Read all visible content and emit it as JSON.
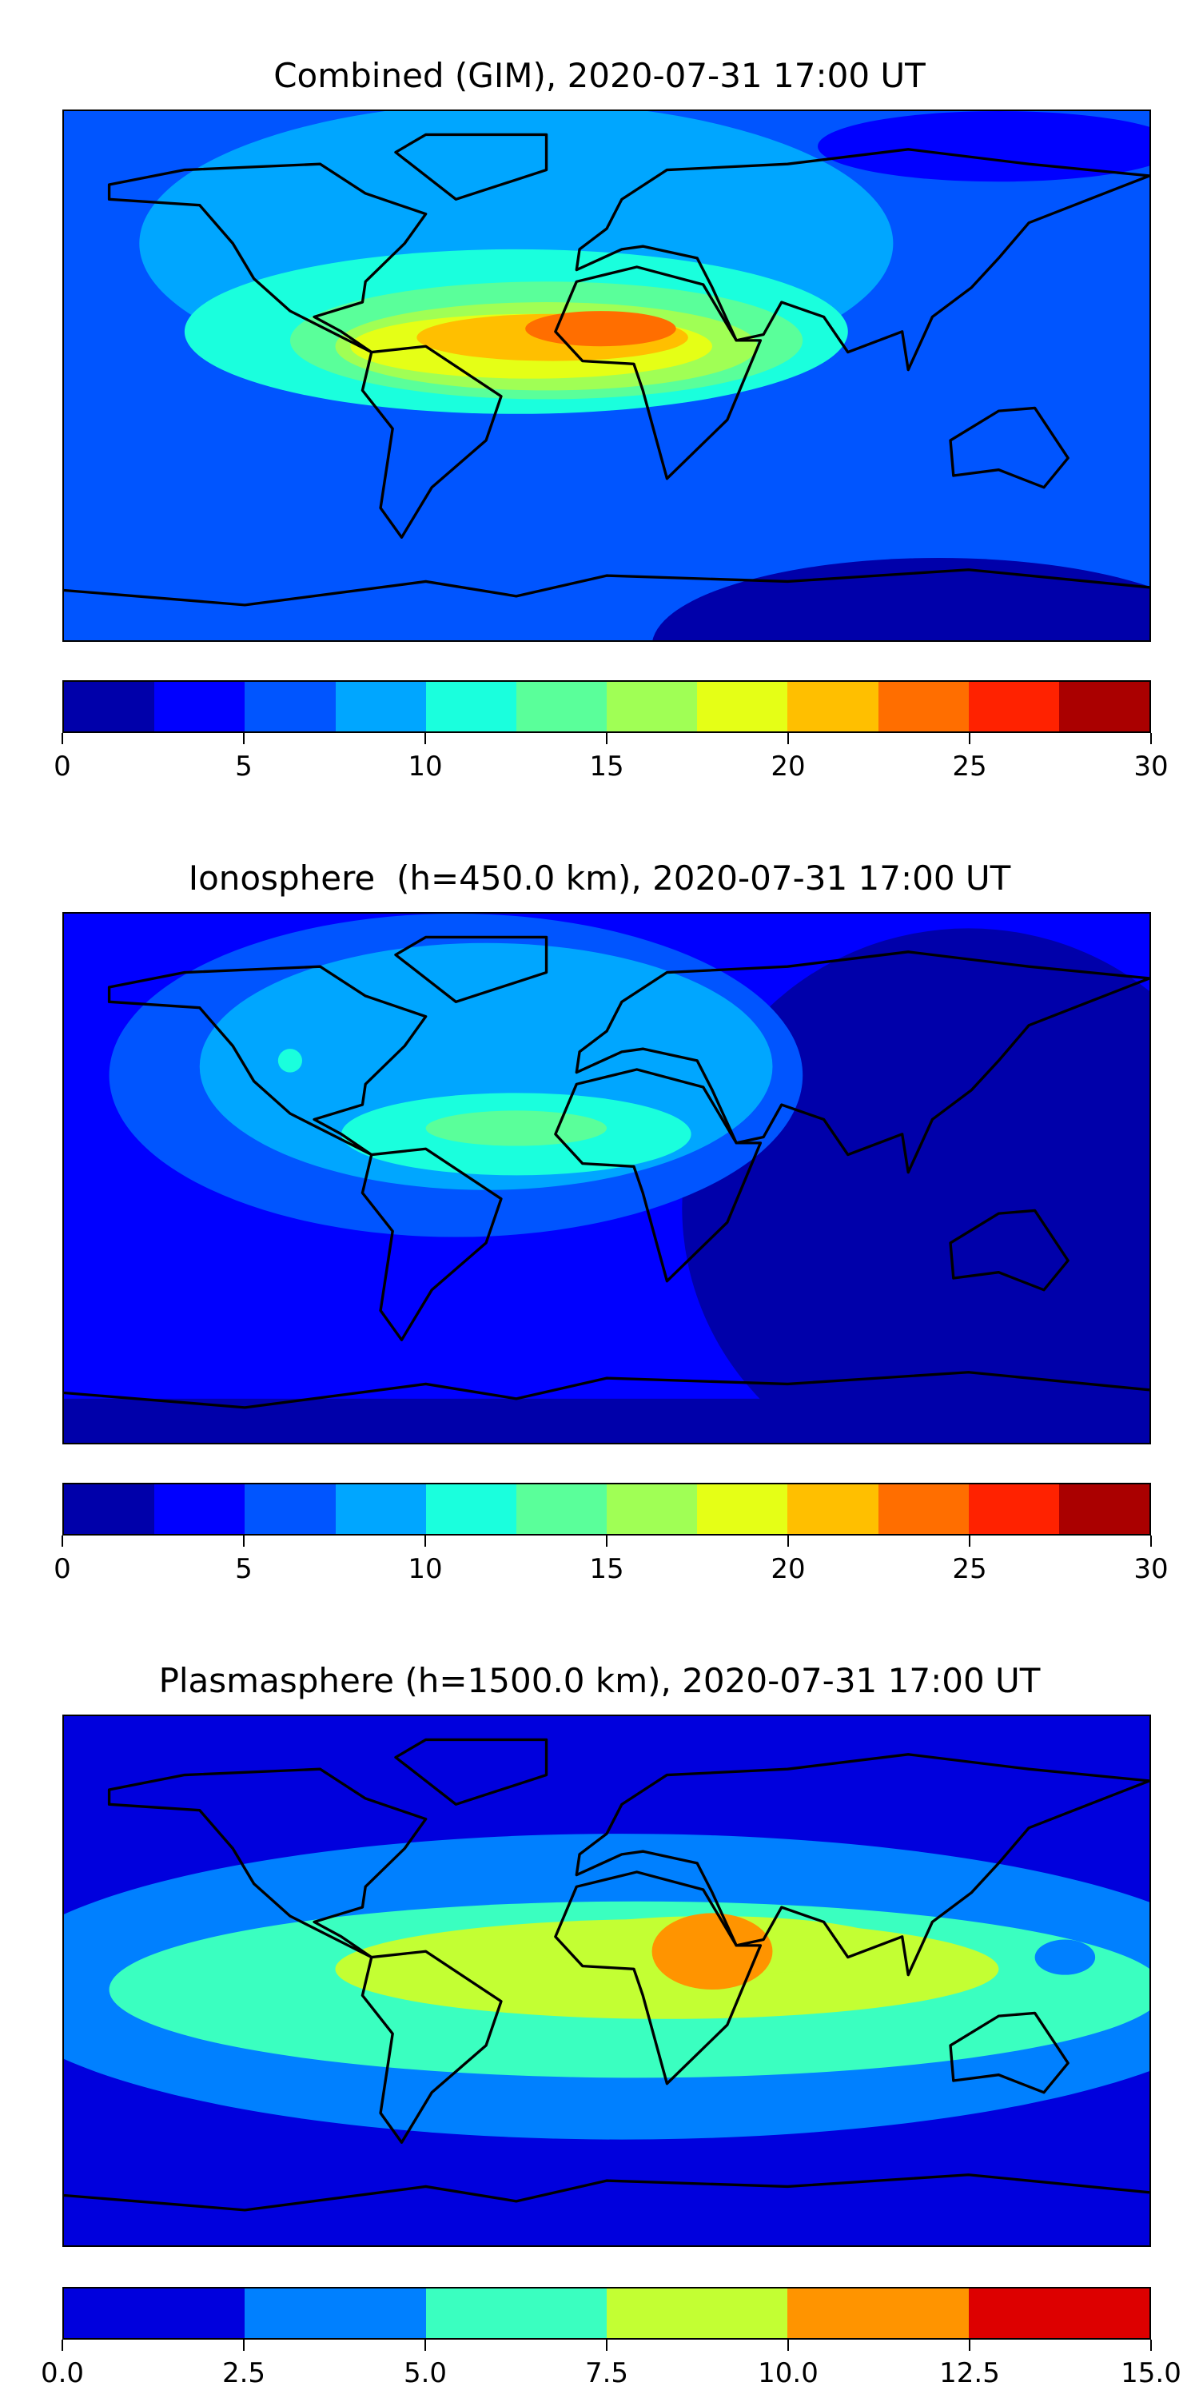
{
  "chart_data": [
    {
      "type": "heatmap",
      "title": "Combined (GIM), 2020-07-31 17:00 UT",
      "projection": "equirectangular world map with coastlines",
      "colorbar": {
        "levels": [
          0,
          2.5,
          5,
          7.5,
          10,
          12.5,
          15,
          17.5,
          20,
          22.5,
          25,
          27.5,
          30
        ],
        "colors": [
          "#0000aa",
          "#0000ff",
          "#0055ff",
          "#00a6ff",
          "#1affdd",
          "#5aff9a",
          "#a0ff55",
          "#e5ff16",
          "#ffbf00",
          "#ff6e00",
          "#ff2200",
          "#aa0000"
        ],
        "ticks": [
          "0",
          "5",
          "10",
          "15",
          "20",
          "25",
          "30"
        ],
        "range": [
          0,
          30
        ]
      },
      "max_region": "tropical Atlantic / West Africa, ~22.5-25"
    },
    {
      "type": "heatmap",
      "title": "Ionosphere  (h=450.0 km), 2020-07-31 17:00 UT",
      "projection": "equirectangular world map with coastlines",
      "colorbar": {
        "levels": [
          0,
          2.5,
          5,
          7.5,
          10,
          12.5,
          15,
          17.5,
          20,
          22.5,
          25,
          27.5,
          30
        ],
        "colors": [
          "#0000aa",
          "#0000ff",
          "#0055ff",
          "#00a6ff",
          "#1affdd",
          "#5aff9a",
          "#a0ff55",
          "#e5ff16",
          "#ffbf00",
          "#ff6e00",
          "#ff2200",
          "#aa0000"
        ],
        "ticks": [
          "0",
          "5",
          "10",
          "15",
          "20",
          "25",
          "30"
        ],
        "range": [
          0,
          30
        ]
      },
      "max_region": "South America / tropical Atlantic, ~12.5-15"
    },
    {
      "type": "heatmap",
      "title": "Plasmasphere (h=1500.0 km), 2020-07-31 17:00 UT",
      "projection": "equirectangular world map with coastlines",
      "colorbar": {
        "levels": [
          0,
          2.5,
          5,
          7.5,
          10,
          12.5,
          15
        ],
        "colors": [
          "#0000dd",
          "#0080ff",
          "#3affc0",
          "#c3ff33",
          "#ff9400",
          "#dd0000"
        ],
        "ticks": [
          "0.0",
          "2.5",
          "5.0",
          "7.5",
          "10.0",
          "12.5",
          "15.0"
        ],
        "range": [
          0,
          15
        ]
      },
      "max_region": "East Africa / Arabia, ~10-12.5"
    }
  ]
}
